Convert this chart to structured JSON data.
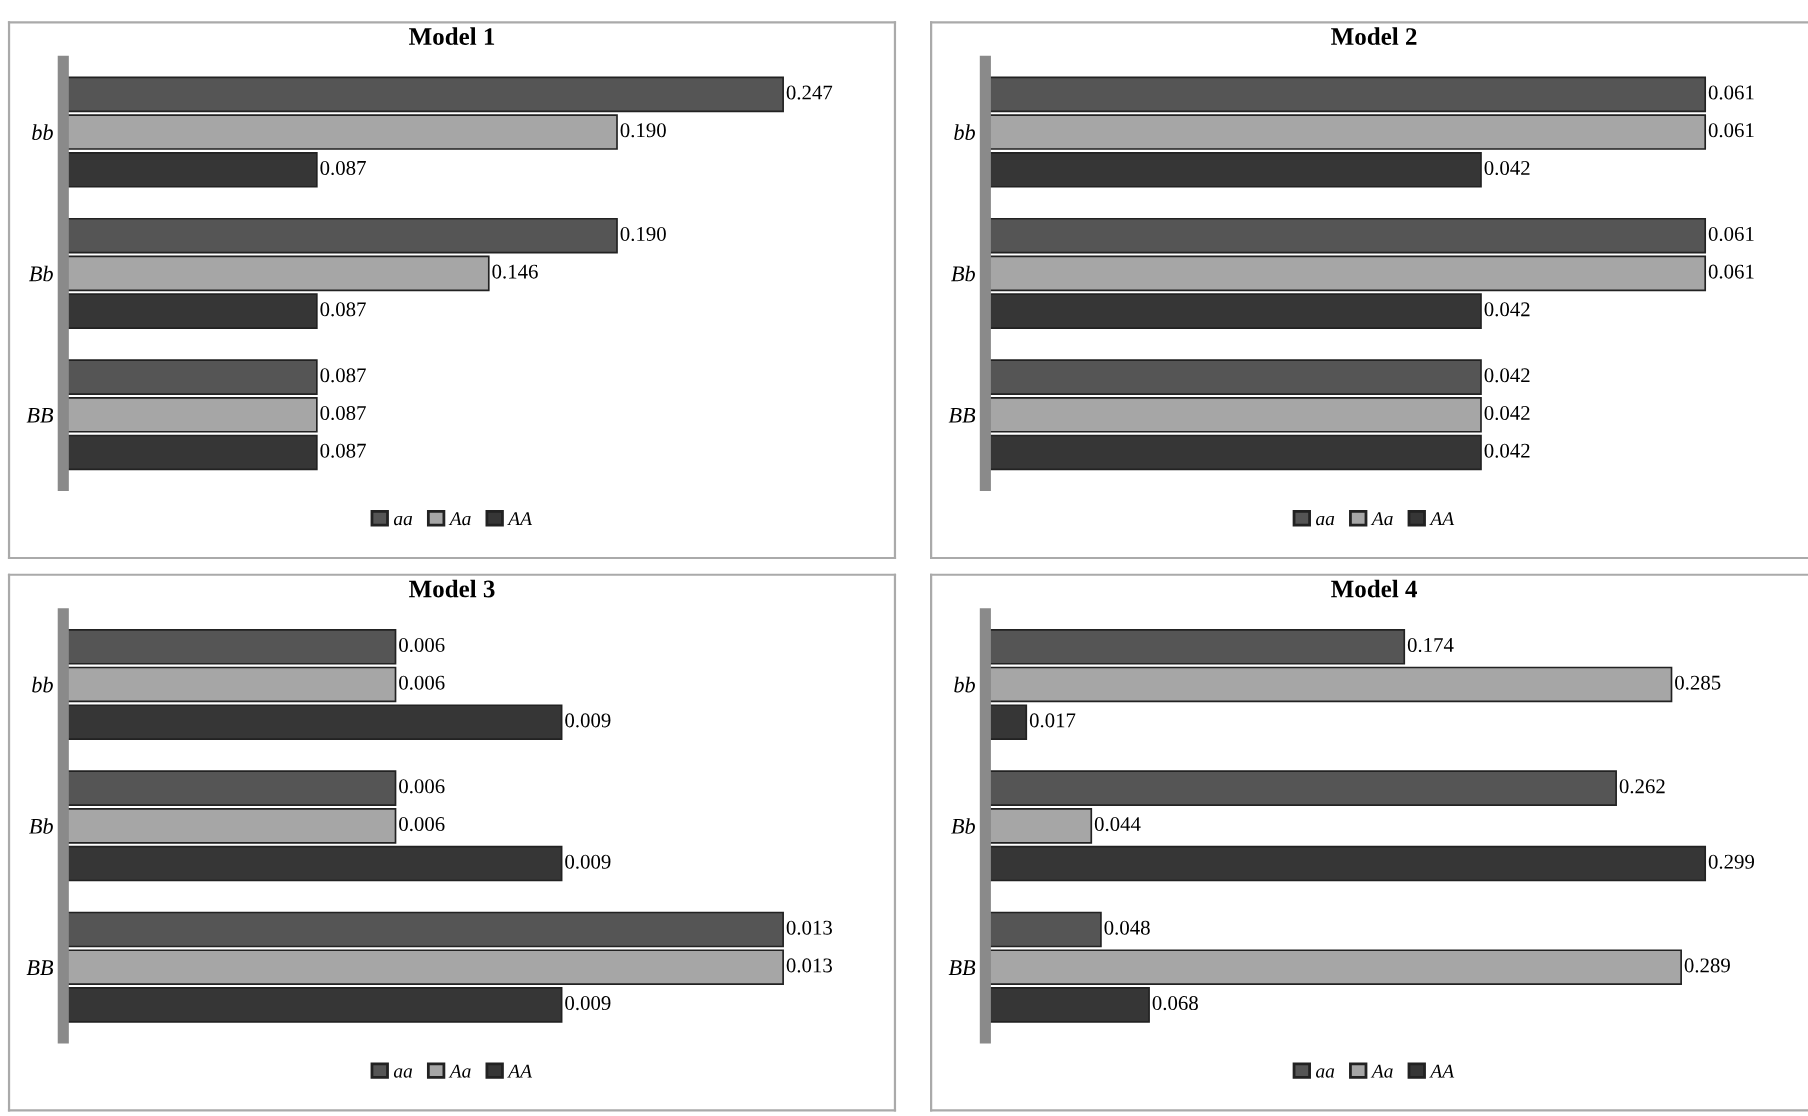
{
  "chart_data": [
    {
      "type": "bar",
      "orientation": "horizontal",
      "title": "Model 1",
      "categories": [
        "bb",
        "Bb",
        "BB"
      ],
      "legend": "bottom",
      "series": [
        {
          "name": "aa",
          "color": "#555555",
          "values": [
            0.247,
            0.19,
            0.087
          ],
          "value_labels": [
            "0.247",
            "0.190",
            "0.087"
          ]
        },
        {
          "name": "Aa",
          "color": "#a6a6a6",
          "values": [
            0.19,
            0.146,
            0.087
          ],
          "value_labels": [
            "0.190",
            "0.146",
            "0.087"
          ]
        },
        {
          "name": "AA",
          "color": "#363636",
          "values": [
            0.087,
            0.087,
            0.087
          ],
          "value_labels": [
            "0.087",
            "0.087",
            "0.087"
          ]
        }
      ]
    },
    {
      "type": "bar",
      "orientation": "horizontal",
      "title": "Model 2",
      "categories": [
        "bb",
        "Bb",
        "BB"
      ],
      "legend": "bottom",
      "series": [
        {
          "name": "aa",
          "color": "#555555",
          "values": [
            0.061,
            0.061,
            0.042
          ],
          "value_labels": [
            "0.061",
            "0.061",
            "0.042"
          ]
        },
        {
          "name": "Aa",
          "color": "#a6a6a6",
          "values": [
            0.061,
            0.061,
            0.042
          ],
          "value_labels": [
            "0.061",
            "0.061",
            "0.042"
          ]
        },
        {
          "name": "AA",
          "color": "#363636",
          "values": [
            0.042,
            0.042,
            0.042
          ],
          "value_labels": [
            "0.042",
            "0.042",
            "0.042"
          ]
        }
      ]
    },
    {
      "type": "bar",
      "orientation": "horizontal",
      "title": "Model 3",
      "categories": [
        "bb",
        "Bb",
        "BB"
      ],
      "legend": "bottom",
      "series": [
        {
          "name": "aa",
          "color": "#555555",
          "values": [
            0.006,
            0.006,
            0.013
          ],
          "value_labels": [
            "0.006",
            "0.006",
            "0.013"
          ]
        },
        {
          "name": "Aa",
          "color": "#a6a6a6",
          "values": [
            0.006,
            0.006,
            0.013
          ],
          "value_labels": [
            "0.006",
            "0.006",
            "0.013"
          ]
        },
        {
          "name": "AA",
          "color": "#363636",
          "values": [
            0.009,
            0.009,
            0.009
          ],
          "value_labels": [
            "0.009",
            "0.009",
            "0.009"
          ]
        }
      ]
    },
    {
      "type": "bar",
      "orientation": "horizontal",
      "title": "Model 4",
      "categories": [
        "bb",
        "Bb",
        "BB"
      ],
      "legend": "bottom",
      "series": [
        {
          "name": "aa",
          "color": "#555555",
          "values": [
            0.174,
            0.262,
            0.048
          ],
          "value_labels": [
            "0.174",
            "0.262",
            "0.048"
          ]
        },
        {
          "name": "Aa",
          "color": "#a6a6a6",
          "values": [
            0.285,
            0.044,
            0.289
          ],
          "value_labels": [
            "0.285",
            "0.044",
            "0.289"
          ]
        },
        {
          "name": "AA",
          "color": "#363636",
          "values": [
            0.017,
            0.299,
            0.068
          ],
          "value_labels": [
            "0.017",
            "0.299",
            "0.068"
          ]
        }
      ]
    }
  ]
}
